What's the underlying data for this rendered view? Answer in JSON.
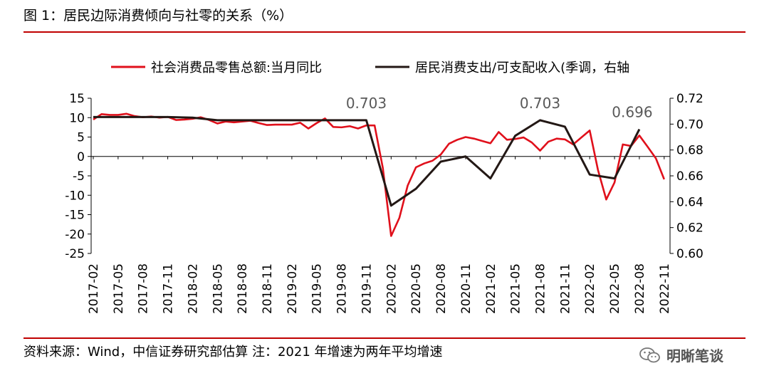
{
  "figure": {
    "title": "图 1：居民边际消费倾向与社零的关系（%）",
    "source": "资料来源：Wind，中信证券研究部估算 注：2021 年增速为两年平均增速",
    "brand": "明晰笔谈",
    "brand_icon": "wechat-icon"
  },
  "colors": {
    "accent": "#c00000",
    "series_red": "#e0101b",
    "series_black": "#231815",
    "annotation": "#595959"
  },
  "chart_data": {
    "type": "line",
    "categories": [
      "2017-02",
      "2017-03",
      "2017-04",
      "2017-05",
      "2017-06",
      "2017-07",
      "2017-08",
      "2017-09",
      "2017-10",
      "2017-11",
      "2017-12",
      "2018-01",
      "2018-02",
      "2018-03",
      "2018-04",
      "2018-05",
      "2018-06",
      "2018-07",
      "2018-08",
      "2018-09",
      "2018-10",
      "2018-11",
      "2018-12",
      "2019-01",
      "2019-02",
      "2019-03",
      "2019-04",
      "2019-05",
      "2019-06",
      "2019-07",
      "2019-08",
      "2019-09",
      "2019-10",
      "2019-11",
      "2019-12",
      "2020-01",
      "2020-02",
      "2020-03",
      "2020-04",
      "2020-05",
      "2020-06",
      "2020-07",
      "2020-08",
      "2020-09",
      "2020-10",
      "2020-11",
      "2020-12",
      "2021-01",
      "2021-02",
      "2021-03",
      "2021-04",
      "2021-05",
      "2021-06",
      "2021-07",
      "2021-08",
      "2021-09",
      "2021-10",
      "2021-11",
      "2021-12",
      "2022-01",
      "2022-02",
      "2022-03",
      "2022-04",
      "2022-05",
      "2022-06",
      "2022-07",
      "2022-08",
      "2022-09",
      "2022-10",
      "2022-11"
    ],
    "x_tick_labels": [
      "2017-02",
      "2017-05",
      "2017-08",
      "2017-11",
      "2018-02",
      "2018-05",
      "2018-08",
      "2018-11",
      "2019-02",
      "2019-05",
      "2019-08",
      "2019-11",
      "2020-02",
      "2020-05",
      "2020-08",
      "2020-11",
      "2021-02",
      "2021-05",
      "2021-08",
      "2021-11",
      "2022-02",
      "2022-05",
      "2022-08",
      "2022-11"
    ],
    "legend": [
      "社会消费品零售总额:当月同比",
      "居民消费支出/可支配收入(季调，右轴"
    ],
    "legend_position": "top",
    "y_left": {
      "min": -25,
      "max": 15,
      "ticks": [
        15,
        10,
        5,
        0,
        -5,
        -10,
        -15,
        -20,
        -25
      ]
    },
    "y_right": {
      "min": 0.6,
      "max": 0.72,
      "ticks": [
        "0.72",
        "0.70",
        "0.68",
        "0.66",
        "0.64",
        "0.62",
        "0.60"
      ]
    },
    "grid": false,
    "series": [
      {
        "name": "社会消费品零售总额:当月同比",
        "axis": "left",
        "values": [
          9.5,
          10.9,
          10.7,
          10.7,
          11.0,
          10.4,
          10.1,
          10.3,
          10.0,
          10.2,
          9.4,
          9.5,
          9.7,
          10.1,
          9.4,
          8.5,
          9.0,
          8.8,
          9.0,
          9.2,
          8.6,
          8.1,
          8.2,
          8.2,
          8.2,
          8.7,
          7.2,
          8.6,
          9.8,
          7.6,
          7.5,
          7.8,
          7.2,
          8.0,
          8.0,
          -3.0,
          -20.5,
          -15.8,
          -7.5,
          -2.8,
          -1.8,
          -1.1,
          0.5,
          3.3,
          4.3,
          5.0,
          4.6,
          4.0,
          3.4,
          6.3,
          4.3,
          4.5,
          4.9,
          3.6,
          1.5,
          3.8,
          4.6,
          4.4,
          3.1,
          4.9,
          6.7,
          -3.5,
          -11.1,
          -6.7,
          3.1,
          2.7,
          5.4,
          2.5,
          -0.5,
          -5.9
        ]
      },
      {
        "name": "居民消费支出/可支配收入(季调，右轴",
        "axis": "right",
        "points": [
          {
            "x": "2017-02",
            "y": 0.7055
          },
          {
            "x": "2017-11",
            "y": 0.7055
          },
          {
            "x": "2018-02",
            "y": 0.705
          },
          {
            "x": "2018-05",
            "y": 0.703
          },
          {
            "x": "2019-11",
            "y": 0.703
          },
          {
            "x": "2020-02",
            "y": 0.637
          },
          {
            "x": "2020-05",
            "y": 0.65
          },
          {
            "x": "2020-08",
            "y": 0.671
          },
          {
            "x": "2020-11",
            "y": 0.675
          },
          {
            "x": "2021-02",
            "y": 0.658
          },
          {
            "x": "2021-05",
            "y": 0.691
          },
          {
            "x": "2021-08",
            "y": 0.703
          },
          {
            "x": "2021-11",
            "y": 0.698
          },
          {
            "x": "2022-02",
            "y": 0.661
          },
          {
            "x": "2022-05",
            "y": 0.658
          },
          {
            "x": "2022-08",
            "y": 0.696
          }
        ]
      }
    ],
    "annotations": [
      {
        "text": "0.703",
        "x": "2019-11"
      },
      {
        "text": "0.703",
        "x": "2021-08"
      },
      {
        "text": "0.696",
        "x": "2022-08"
      }
    ]
  }
}
